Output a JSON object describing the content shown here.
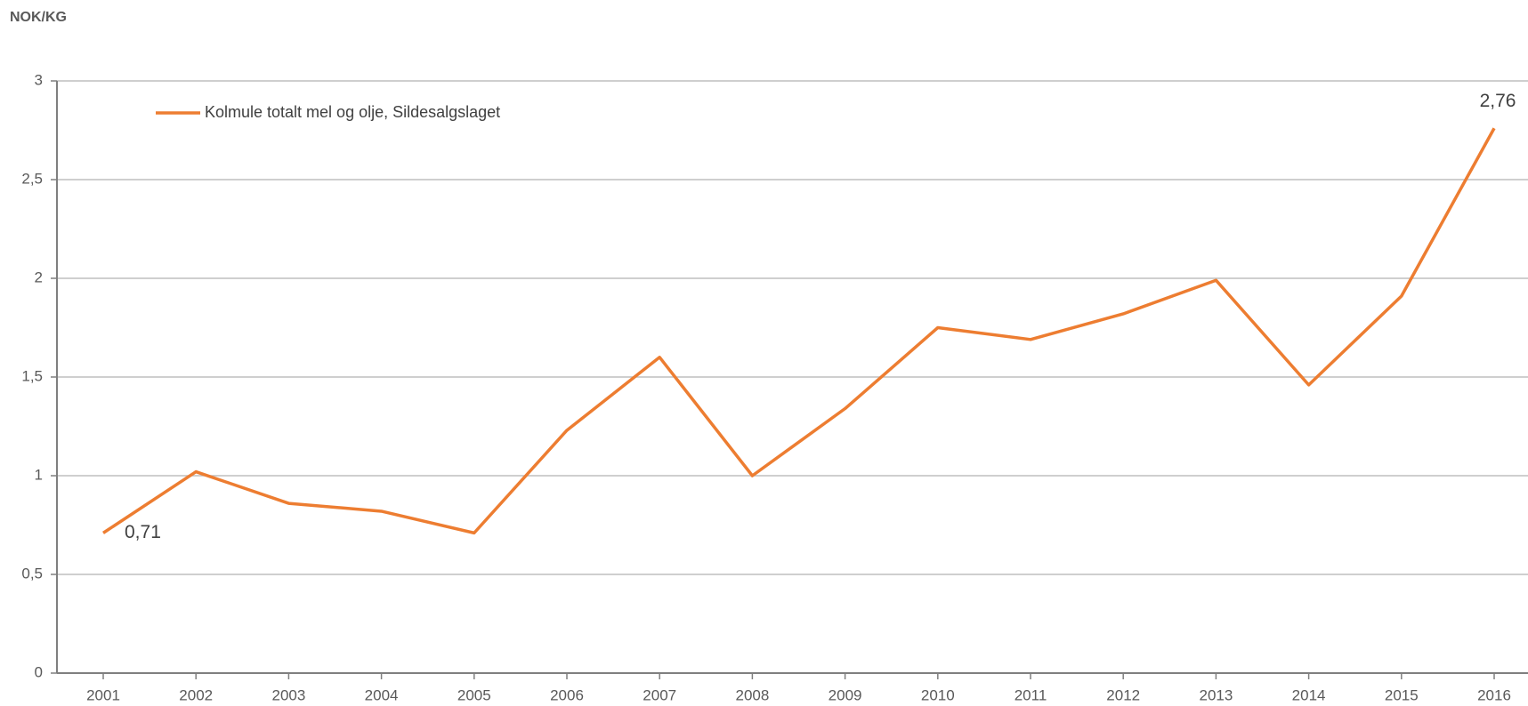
{
  "chart_data": {
    "type": "line",
    "y_axis_label": "NOK/KG",
    "categories": [
      "2001",
      "2002",
      "2003",
      "2004",
      "2005",
      "2006",
      "2007",
      "2008",
      "2009",
      "2010",
      "2011",
      "2012",
      "2013",
      "2014",
      "2015",
      "2016"
    ],
    "series": [
      {
        "name": "Kolmule totalt mel og olje, Sildesalgslaget",
        "color": "#ed7d31",
        "values": [
          0.71,
          1.02,
          0.86,
          0.82,
          0.71,
          1.23,
          1.6,
          1.0,
          1.34,
          1.75,
          1.69,
          1.82,
          1.99,
          1.46,
          1.91,
          2.76
        ],
        "value_labels": [
          "0,71",
          null,
          null,
          null,
          null,
          null,
          null,
          null,
          null,
          null,
          null,
          null,
          null,
          null,
          null,
          "2,76"
        ]
      }
    ],
    "ylim": [
      0,
      3
    ],
    "yticks": [
      0,
      {
        "value": 0.5,
        "label": "0,5"
      },
      1,
      {
        "value": 1.5,
        "label": "1,5"
      },
      2,
      {
        "value": 2.5,
        "label": "2,5"
      },
      3
    ],
    "grid": true,
    "legend": "top-left"
  }
}
